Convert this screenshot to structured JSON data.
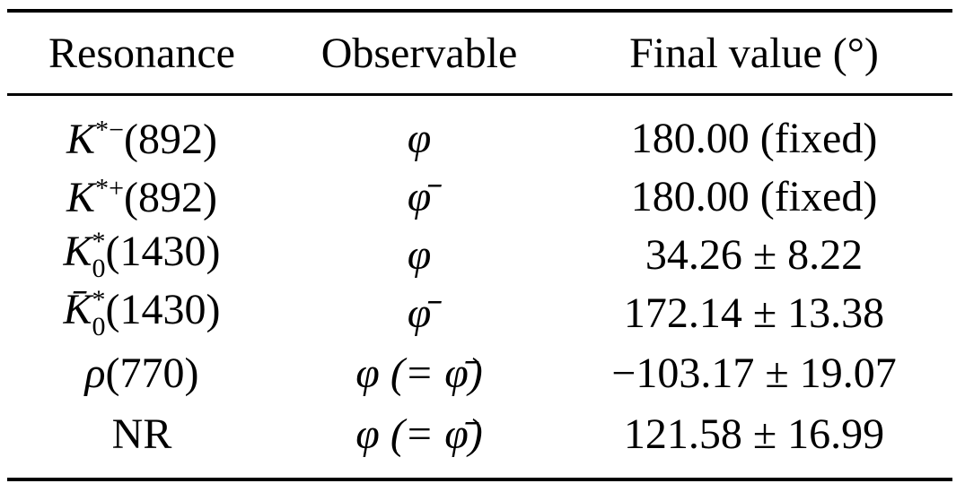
{
  "table": {
    "header": [
      "Resonance",
      "Observable",
      "Final value (°)"
    ],
    "rows": [
      [
        {
          "symbol": "K",
          "sup": "*−",
          "mass": "(892)"
        },
        "φ",
        "180.00 (fixed)"
      ],
      [
        {
          "symbol": "K",
          "sup": "*+",
          "mass": "(892)"
        },
        "φ̄",
        "180.00 (fixed)"
      ],
      [
        {
          "symbol": "K",
          "sup": "*",
          "sub": "0",
          "mass": "(1430)"
        },
        "φ",
        "34.26 ± 8.22"
      ],
      [
        {
          "symbol": "K̄",
          "sup": "*",
          "sub": "0",
          "mass": "(1430)"
        },
        "φ̄",
        "172.14 ± 13.38"
      ],
      [
        {
          "symbol": "ρ",
          "mass": "(770)"
        },
        "φ (= φ̄)",
        "−103.17 ± 19.07"
      ],
      [
        {
          "text": "NR"
        },
        "φ (= φ̄)",
        "121.58 ± 16.99"
      ]
    ]
  }
}
